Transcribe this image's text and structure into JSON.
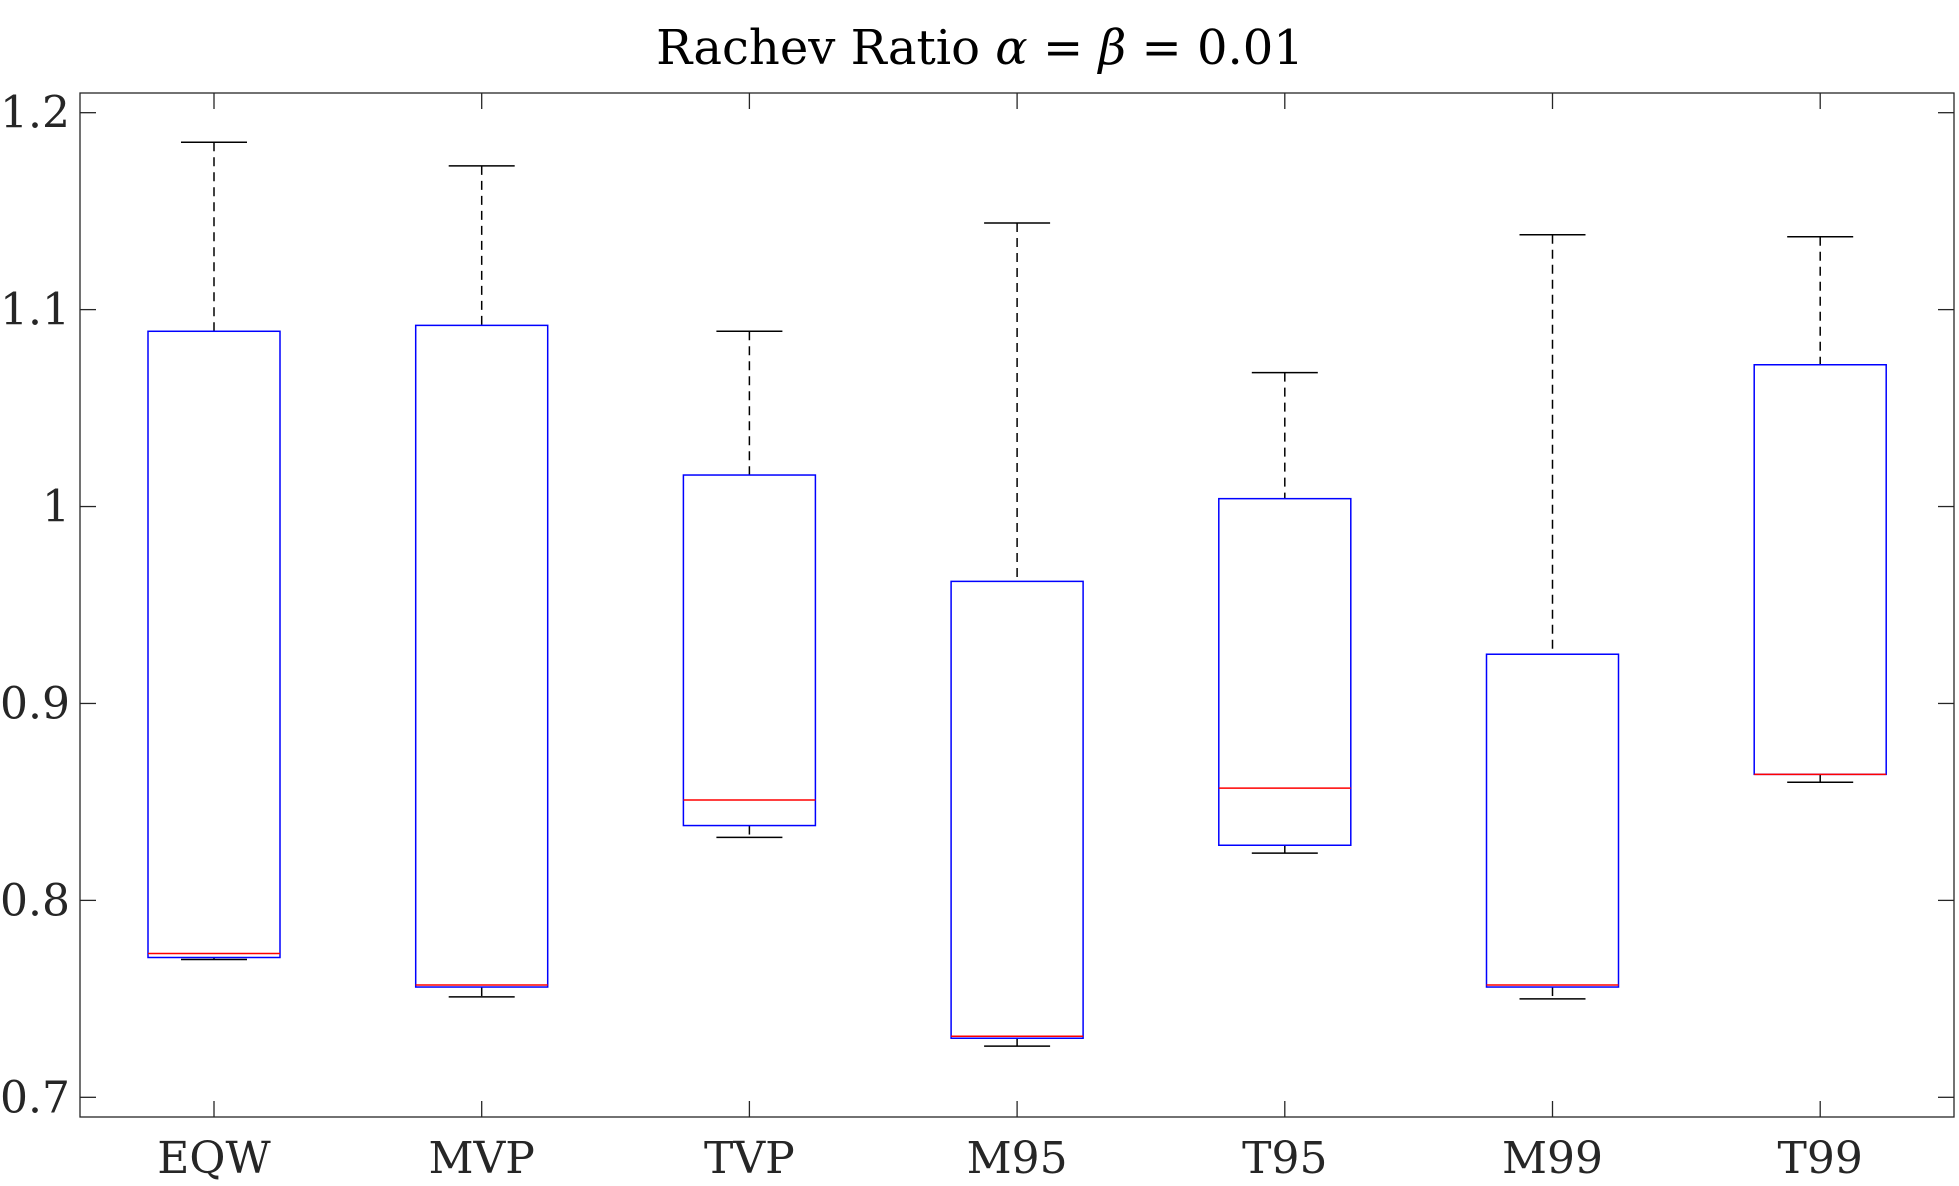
{
  "chart_data": {
    "type": "boxplot",
    "title": "Rachev Ratio",
    "title_math": {
      "alpha": "α",
      "beta": "β",
      "equals": "=",
      "value": "0.01"
    },
    "xlabel": "",
    "ylabel": "",
    "ylim": [
      0.69,
      1.21
    ],
    "yticks": [
      0.7,
      0.8,
      0.9,
      1.0,
      1.1,
      1.2
    ],
    "ytick_labels": [
      "0.7",
      "0.8",
      "0.9",
      "1",
      "1.1",
      "1.2"
    ],
    "categories": [
      "EQW",
      "MVP",
      "TVP",
      "M95",
      "T95",
      "M99",
      "T99"
    ],
    "boxes": [
      {
        "name": "EQW",
        "whisker_low": 0.77,
        "q1": 0.771,
        "median": 0.773,
        "q3": 1.089,
        "whisker_high": 1.185
      },
      {
        "name": "MVP",
        "whisker_low": 0.751,
        "q1": 0.756,
        "median": 0.757,
        "q3": 1.092,
        "whisker_high": 1.173
      },
      {
        "name": "TVP",
        "whisker_low": 0.832,
        "q1": 0.838,
        "median": 0.851,
        "q3": 1.016,
        "whisker_high": 1.089
      },
      {
        "name": "M95",
        "whisker_low": 0.726,
        "q1": 0.73,
        "median": 0.731,
        "q3": 0.962,
        "whisker_high": 1.144
      },
      {
        "name": "T95",
        "whisker_low": 0.824,
        "q1": 0.828,
        "median": 0.857,
        "q3": 1.004,
        "whisker_high": 1.068
      },
      {
        "name": "M99",
        "whisker_low": 0.75,
        "q1": 0.756,
        "median": 0.757,
        "q3": 0.925,
        "whisker_high": 1.138
      },
      {
        "name": "T99",
        "whisker_low": 0.86,
        "q1": 0.864,
        "median": 0.864,
        "q3": 1.072,
        "whisker_high": 1.137
      }
    ],
    "colors": {
      "box": "#0000ff",
      "median": "#ff0000",
      "whisker": "#000000",
      "axis": "#262626"
    },
    "grid": false,
    "legend": "none"
  }
}
